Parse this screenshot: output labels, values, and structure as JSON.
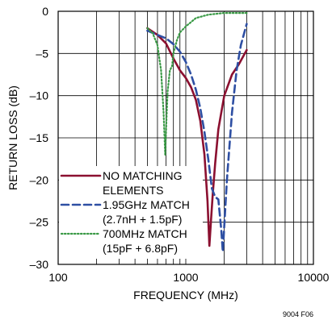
{
  "chart_data": {
    "type": "line",
    "title": "",
    "xlabel": "FREQUENCY (MHz)",
    "ylabel": "RETURN LOSS (dB)",
    "xscale": "log",
    "xlim": [
      100,
      10000
    ],
    "ylim": [
      -30,
      0
    ],
    "grid": true,
    "legend_position": "bottom-left",
    "x_ticks": [
      "100",
      "1000",
      "10000"
    ],
    "y_ticks": [
      "0",
      "–5",
      "–10",
      "–15",
      "–20",
      "–25",
      "–30"
    ],
    "figure_id": "9004 F06",
    "series": [
      {
        "name": "NO MATCHING ELEMENTS",
        "legend_lines": [
          "NO MATCHING",
          "ELEMENTS"
        ],
        "color": "#8B1030",
        "style": "solid",
        "x": [
          500,
          600,
          700,
          800,
          900,
          1000,
          1100,
          1200,
          1300,
          1400,
          1480,
          1530,
          1580,
          1630,
          1700,
          1800,
          2000,
          2300,
          2600,
          2900,
          3000
        ],
        "y": [
          -2.0,
          -2.8,
          -3.8,
          -5.6,
          -7.0,
          -7.9,
          -9.0,
          -10.5,
          -13.0,
          -17.0,
          -22.5,
          -27.8,
          -24.5,
          -21.5,
          -18.0,
          -14.0,
          -10.0,
          -7.5,
          -6.3,
          -5.0,
          -4.6
        ]
      },
      {
        "name": "1.95GHz MATCH (2.7nH + 1.5pF)",
        "legend_lines": [
          "1.95GHz MATCH",
          "(2.7nH + 1.5pF)"
        ],
        "color": "#2E4FA3",
        "style": "dashed",
        "x": [
          500,
          600,
          700,
          800,
          900,
          1000,
          1100,
          1200,
          1300,
          1400,
          1500,
          1600,
          1700,
          1800,
          1900,
          1950,
          2000,
          2100,
          2300,
          2500,
          2700,
          3000
        ],
        "y": [
          -2.3,
          -2.8,
          -3.2,
          -3.9,
          -4.8,
          -6.0,
          -7.5,
          -9.3,
          -11.5,
          -14.3,
          -17.5,
          -21.0,
          -22.0,
          -22.3,
          -26.0,
          -28.5,
          -25.5,
          -20.0,
          -12.0,
          -7.0,
          -4.0,
          -1.5
        ]
      },
      {
        "name": "700MHz MATCH (15pF + 6.8pF)",
        "legend_lines": [
          "700MHz MATCH",
          "(15pF + 6.8pF)"
        ],
        "color": "#3A9A46",
        "style": "dotted",
        "x": [
          500,
          550,
          600,
          640,
          670,
          690,
          705,
          720,
          750,
          780,
          800,
          850,
          900,
          1000,
          1200,
          1500,
          2000,
          3000
        ],
        "y": [
          -2.0,
          -2.6,
          -4.0,
          -7.0,
          -12.0,
          -17.0,
          -13.0,
          -9.5,
          -7.0,
          -6.5,
          -5.0,
          -3.5,
          -2.5,
          -1.8,
          -0.8,
          -0.4,
          -0.2,
          -0.2
        ]
      }
    ]
  }
}
